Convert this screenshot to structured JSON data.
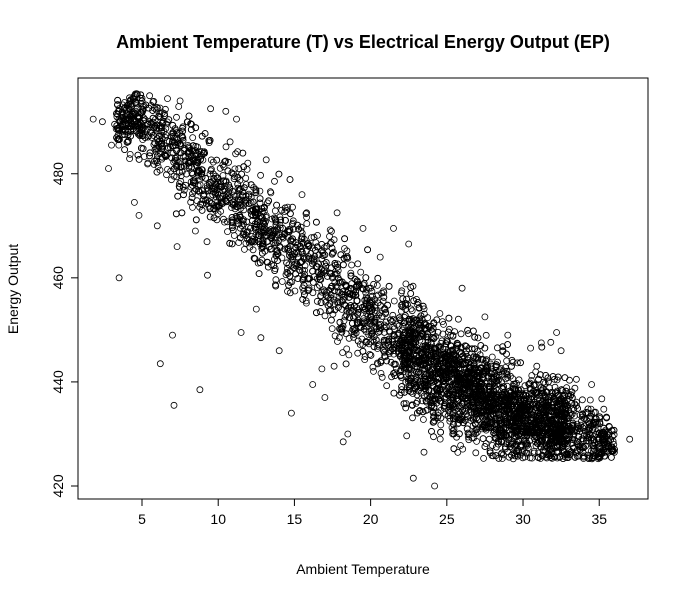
{
  "chart_data": {
    "type": "scatter",
    "title": "Ambient Temperature (T) vs Electrical Energy Output (EP)",
    "xlabel": "Ambient Temperature",
    "ylabel": "Energy Output",
    "xlim": [
      0.8,
      38.2
    ],
    "ylim": [
      417.5,
      498.4
    ],
    "xticks": [
      5,
      10,
      15,
      20,
      25,
      30,
      35
    ],
    "yticks": [
      420,
      440,
      460,
      480
    ],
    "grid": false,
    "marker": "open-circle",
    "colors": {
      "marker": "#000000",
      "axis": "#000000"
    },
    "main_band": [
      {
        "x": 1.8,
        "y": 490.5,
        "sd": 1.0
      },
      {
        "x": 5,
        "y": 490.0,
        "sd": 3.0
      },
      {
        "x": 7,
        "y": 485.0,
        "sd": 4.0
      },
      {
        "x": 10,
        "y": 477.0,
        "sd": 4.0
      },
      {
        "x": 12,
        "y": 472.0,
        "sd": 4.0
      },
      {
        "x": 15,
        "y": 465.0,
        "sd": 4.0
      },
      {
        "x": 18,
        "y": 457.0,
        "sd": 4.5
      },
      {
        "x": 20,
        "y": 452.0,
        "sd": 4.5
      },
      {
        "x": 22,
        "y": 447.0,
        "sd": 5.0
      },
      {
        "x": 25,
        "y": 441.0,
        "sd": 5.0
      },
      {
        "x": 28,
        "y": 436.0,
        "sd": 4.5
      },
      {
        "x": 30,
        "y": 433.0,
        "sd": 4.0
      },
      {
        "x": 33,
        "y": 431.0,
        "sd": 3.5
      },
      {
        "x": 35,
        "y": 429.0,
        "sd": 3.0
      },
      {
        "x": 37,
        "y": 429.0,
        "sd": 1.0
      }
    ],
    "points": [
      {
        "x": 1.8,
        "y": 490.5
      },
      {
        "x": 2.4,
        "y": 490.0
      },
      {
        "x": 2.8,
        "y": 481.0
      },
      {
        "x": 3.0,
        "y": 485.5
      },
      {
        "x": 3.2,
        "y": 489.5
      },
      {
        "x": 3.5,
        "y": 460.0
      },
      {
        "x": 3.5,
        "y": 492.5
      },
      {
        "x": 4.2,
        "y": 491.0
      },
      {
        "x": 4.5,
        "y": 474.5
      },
      {
        "x": 4.8,
        "y": 472.0
      },
      {
        "x": 5.0,
        "y": 494.5
      },
      {
        "x": 5.5,
        "y": 495.0
      },
      {
        "x": 6.0,
        "y": 470.0
      },
      {
        "x": 6.2,
        "y": 443.5
      },
      {
        "x": 7.0,
        "y": 449.0
      },
      {
        "x": 7.1,
        "y": 435.5
      },
      {
        "x": 7.3,
        "y": 466.0
      },
      {
        "x": 7.5,
        "y": 494.0
      },
      {
        "x": 8.5,
        "y": 469.0
      },
      {
        "x": 8.8,
        "y": 438.5
      },
      {
        "x": 9.5,
        "y": 492.5
      },
      {
        "x": 9.3,
        "y": 460.5
      },
      {
        "x": 10.5,
        "y": 492.0
      },
      {
        "x": 11.2,
        "y": 490.5
      },
      {
        "x": 11.5,
        "y": 449.5
      },
      {
        "x": 12.5,
        "y": 454.0
      },
      {
        "x": 12.8,
        "y": 448.5
      },
      {
        "x": 13.2,
        "y": 463.0
      },
      {
        "x": 14.0,
        "y": 446.0
      },
      {
        "x": 14.8,
        "y": 434.0
      },
      {
        "x": 15.5,
        "y": 476.0
      },
      {
        "x": 16.2,
        "y": 439.5
      },
      {
        "x": 16.8,
        "y": 442.5
      },
      {
        "x": 17.0,
        "y": 437.0
      },
      {
        "x": 17.8,
        "y": 472.5
      },
      {
        "x": 18.2,
        "y": 428.5
      },
      {
        "x": 18.5,
        "y": 430.0
      },
      {
        "x": 19.5,
        "y": 469.5
      },
      {
        "x": 21.5,
        "y": 469.5
      },
      {
        "x": 22.5,
        "y": 466.5
      },
      {
        "x": 22.8,
        "y": 421.5
      },
      {
        "x": 23.5,
        "y": 426.5
      },
      {
        "x": 24.2,
        "y": 420.0
      },
      {
        "x": 26.0,
        "y": 458.0
      },
      {
        "x": 27.5,
        "y": 452.5
      },
      {
        "x": 29.0,
        "y": 449.0
      },
      {
        "x": 30.5,
        "y": 446.5
      },
      {
        "x": 31.2,
        "y": 447.5
      },
      {
        "x": 32.2,
        "y": 449.5
      },
      {
        "x": 32.5,
        "y": 446.0
      },
      {
        "x": 33.5,
        "y": 440.5
      },
      {
        "x": 34.5,
        "y": 439.5
      },
      {
        "x": 35.5,
        "y": 430.0
      },
      {
        "x": 37.0,
        "y": 429.0
      }
    ]
  }
}
